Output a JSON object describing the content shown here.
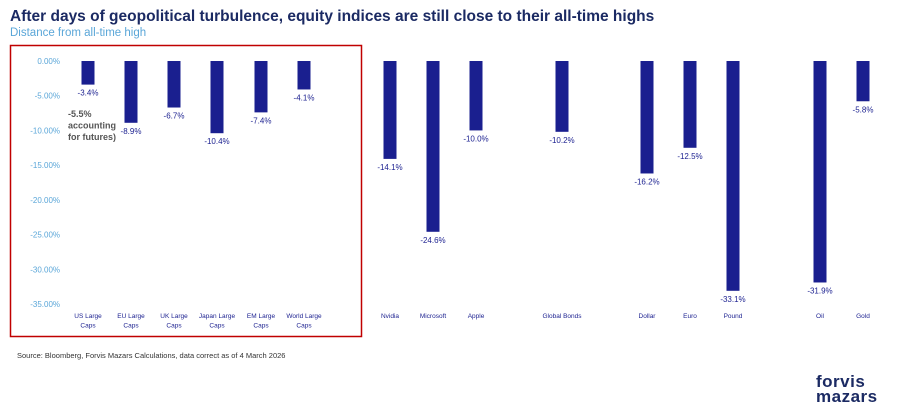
{
  "header": {
    "title": "After days of geopolitical turbulence, equity indices are still close to their all-time highs",
    "subtitle": "Distance from all-time high"
  },
  "colors": {
    "bar": "#1a1f8f",
    "label": "#1a1f8f",
    "axis_tick": "#5aa6d8",
    "highlight_box": "#c00000"
  },
  "annotation": {
    "lines": [
      "-5.5%",
      "accounting",
      "for futures)"
    ]
  },
  "footer": {
    "source": "Source: Bloomberg, Forvis Mazars Calculations, data correct as of 4 March 2026"
  },
  "logo": {
    "line1": "forvis",
    "line2": "mazars"
  },
  "chart_data": {
    "type": "bar",
    "ylim": [
      -35,
      0
    ],
    "yticks": [
      "0.00%",
      "-5.00%",
      "-10.00%",
      "-15.00%",
      "-20.00%",
      "-25.00%",
      "-30.00%",
      "-35.00%"
    ],
    "grid": false,
    "bars": [
      {
        "category": [
          "US Large",
          "Caps"
        ],
        "value": -3.4,
        "label": "-3.4%"
      },
      {
        "category": [
          "EU Large",
          "Caps"
        ],
        "value": -8.9,
        "label": "-8.9%"
      },
      {
        "category": [
          "UK Large",
          "Caps"
        ],
        "value": -6.7,
        "label": "-6.7%"
      },
      {
        "category": [
          "Japan Large",
          "Caps"
        ],
        "value": -10.4,
        "label": "-10.4%"
      },
      {
        "category": [
          "EM Large",
          "Caps"
        ],
        "value": -7.4,
        "label": "-7.4%"
      },
      {
        "category": [
          "World Large",
          "Caps"
        ],
        "value": -4.1,
        "label": "-4.1%"
      },
      {
        "category": [
          "Nvidia"
        ],
        "value": -14.1,
        "label": "-14.1%"
      },
      {
        "category": [
          "Microsoft"
        ],
        "value": -24.6,
        "label": "-24.6%"
      },
      {
        "category": [
          "Apple"
        ],
        "value": -10.0,
        "label": "-10.0%"
      },
      {
        "category": [
          "Global Bonds"
        ],
        "value": -10.2,
        "label": "-10.2%"
      },
      {
        "category": [
          "Dollar"
        ],
        "value": -16.2,
        "label": "-16.2%"
      },
      {
        "category": [
          "Euro"
        ],
        "value": -12.5,
        "label": "-12.5%"
      },
      {
        "category": [
          "Pound"
        ],
        "value": -33.1,
        "label": "-33.1%"
      },
      {
        "category": [
          "Oil"
        ],
        "value": -31.9,
        "label": "-31.9%"
      },
      {
        "category": [
          "Gold"
        ],
        "value": -5.8,
        "label": "-5.8%"
      }
    ]
  }
}
